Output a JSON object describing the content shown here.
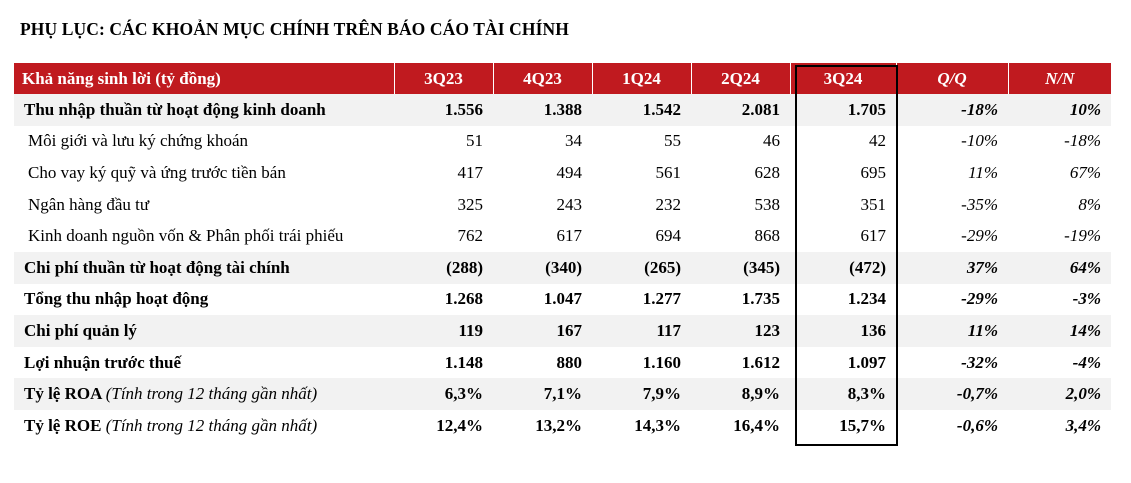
{
  "title": "PHỤ LỤC: CÁC KHOẢN MỤC CHÍNH TRÊN BÁO CÁO TÀI CHÍNH",
  "table": {
    "header": {
      "label": "Khả năng sinh lời (tỷ đồng)",
      "c1": "3Q23",
      "c2": "4Q23",
      "c3": "1Q24",
      "c4": "2Q24",
      "c5": "3Q24",
      "c6": "Q/Q",
      "c7": "N/N"
    },
    "rows": [
      {
        "label": "Thu nhập thuần từ hoạt động kinh doanh",
        "note": "",
        "v": [
          "1.556",
          "1.388",
          "1.542",
          "2.081",
          "1.705",
          "-18%",
          "10%"
        ]
      },
      {
        "label": "Môi giới và lưu ký chứng khoán",
        "note": "",
        "v": [
          "51",
          "34",
          "55",
          "46",
          "42",
          "-10%",
          "-18%"
        ]
      },
      {
        "label": "Cho vay ký quỹ và ứng trước tiền bán",
        "note": "",
        "v": [
          "417",
          "494",
          "561",
          "628",
          "695",
          "11%",
          "67%"
        ]
      },
      {
        "label": "Ngân hàng đầu tư",
        "note": "",
        "v": [
          "325",
          "243",
          "232",
          "538",
          "351",
          "-35%",
          "8%"
        ]
      },
      {
        "label": "Kinh doanh nguồn vốn & Phân phối trái phiếu",
        "note": "",
        "v": [
          "762",
          "617",
          "694",
          "868",
          "617",
          "-29%",
          "-19%"
        ]
      },
      {
        "label": "Chi phí thuần từ hoạt động tài chính",
        "note": "",
        "v": [
          "(288)",
          "(340)",
          "(265)",
          "(345)",
          "(472)",
          "37%",
          "64%"
        ]
      },
      {
        "label": "Tổng thu nhập hoạt động",
        "note": "",
        "v": [
          "1.268",
          "1.047",
          "1.277",
          "1.735",
          "1.234",
          "-29%",
          "-3%"
        ]
      },
      {
        "label": "Chi phí quản lý",
        "note": "",
        "v": [
          "119",
          "167",
          "117",
          "123",
          "136",
          "11%",
          "14%"
        ]
      },
      {
        "label": "Lợi nhuận trước thuế",
        "note": "",
        "v": [
          "1.148",
          "880",
          "1.160",
          "1.612",
          "1.097",
          "-32%",
          "-4%"
        ]
      },
      {
        "label": "Tỷ lệ ROA ",
        "note": "(Tính trong 12 tháng gần nhất)",
        "v": [
          "6,3%",
          "7,1%",
          "7,9%",
          "8,9%",
          "8,3%",
          "-0,7%",
          "2,0%"
        ]
      },
      {
        "label": "Tỷ lệ ROE ",
        "note": "(Tính trong 12 tháng gần nhất)",
        "v": [
          "12,4%",
          "13,2%",
          "14,3%",
          "16,4%",
          "15,7%",
          "-0,6%",
          "3,4%"
        ]
      }
    ]
  },
  "colors": {
    "header_bg": "#c01a1f",
    "header_text": "#ffffff",
    "row_shade": "#f2f2f2"
  }
}
